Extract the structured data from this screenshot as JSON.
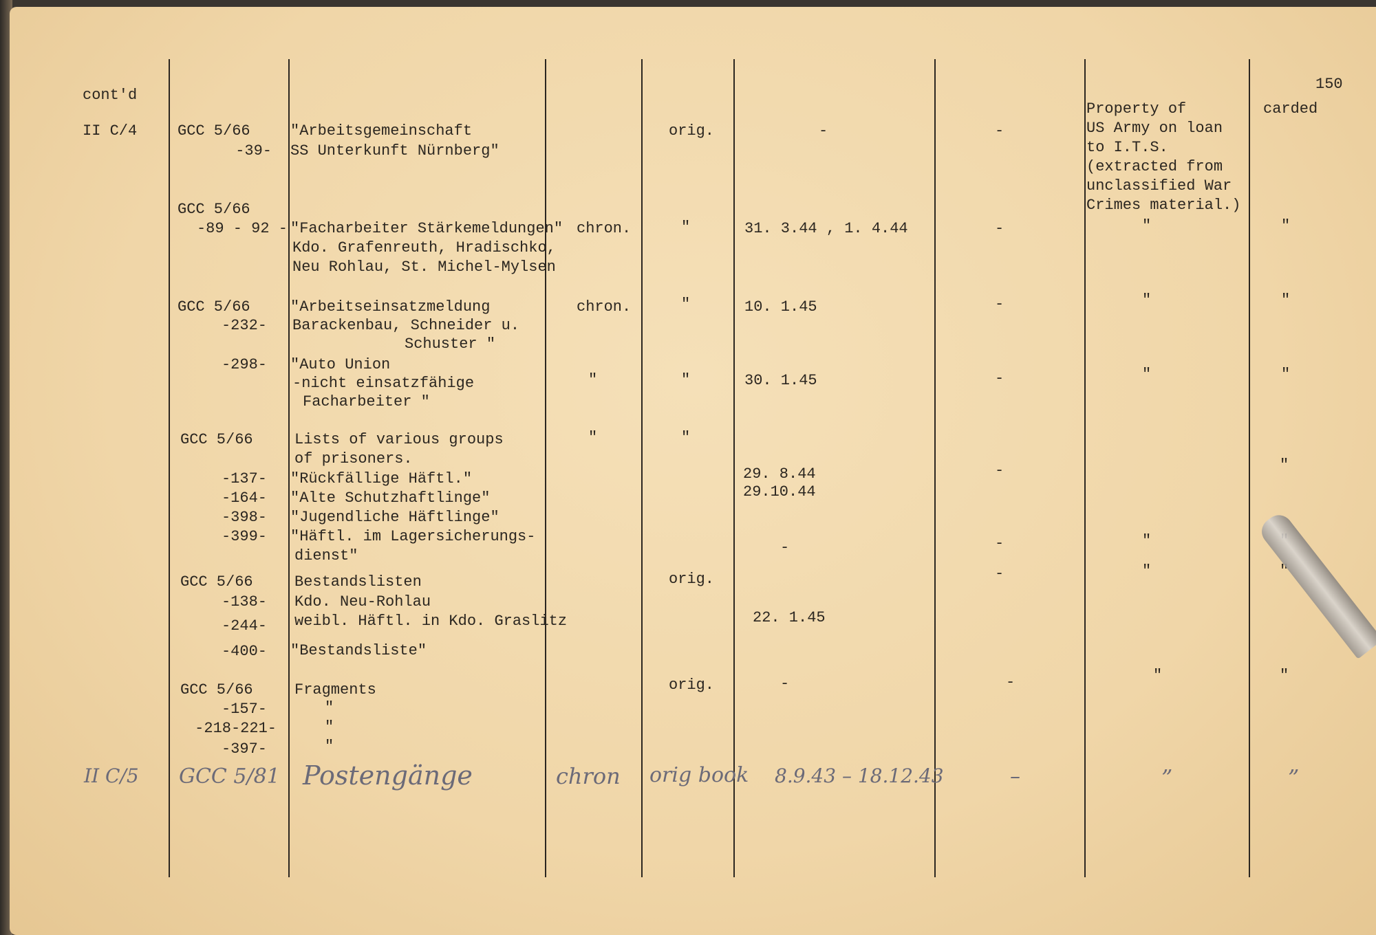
{
  "header": {
    "contd": "cont'd",
    "page_number": "150",
    "carded": "carded",
    "property_note": [
      "Property of",
      "US Army on loan",
      "to I.T.S.",
      "(extracted from",
      "unclassified War",
      "Crimes material.)"
    ]
  },
  "ditto": "\"",
  "dash": "-",
  "entries": [
    {
      "section": "II C/4",
      "ref": [
        "GCC 5/66",
        "-39-"
      ],
      "desc": [
        "\"Arbeitsgemeinschaft",
        "SS Unterkunft Nürnberg\""
      ],
      "orig": "orig."
    },
    {
      "ref": [
        "GCC 5/66",
        "-89 - 92 -"
      ],
      "desc": [
        "\"Facharbeiter Stärkemeldungen\"",
        "Kdo. Grafenreuth, Hradischko,",
        "Neu Rohlau, St. Michel-Mylsen"
      ],
      "type": "chron.",
      "date": "31. 3.44 , 1. 4.44"
    },
    {
      "ref": [
        "GCC 5/66",
        "-232-"
      ],
      "desc": [
        "\"Arbeitseinsatzmeldung",
        "Barackenbau, Schneider u.",
        "Schuster \""
      ],
      "type": "chron.",
      "date": "10. 1.45"
    },
    {
      "ref": [
        "-298-"
      ],
      "desc": [
        "\"Auto Union",
        "-nicht einsatzfähige",
        "Facharbeiter \""
      ],
      "date": "30. 1.45"
    },
    {
      "ref": [
        "GCC 5/66",
        "-137-",
        "-164-",
        "-398-",
        "-399-"
      ],
      "desc": [
        "Lists of various groups",
        "of prisoners.",
        "\"Rückfällige Häftl.\"",
        "\"Alte Schutzhaftlinge\"",
        "\"Jugendliche Häftlinge\"",
        "\"Häftl. im Lagersicherungs-",
        "dienst\""
      ],
      "dates": [
        "29. 8.44",
        "29.10.44"
      ]
    },
    {
      "ref": [
        "GCC 5/66",
        "-138-",
        "-244-",
        "-400-"
      ],
      "desc": [
        "Bestandslisten",
        "Kdo. Neu-Rohlau",
        "weibl. Häftl. in Kdo. Graslitz",
        "\"Bestandsliste\""
      ],
      "orig": "orig.",
      "date": "22. 1.45"
    },
    {
      "ref": [
        "GCC 5/66",
        "-157-",
        "-218-221-",
        "-397-"
      ],
      "desc": [
        "Fragments"
      ],
      "orig": "orig."
    }
  ],
  "handwritten": {
    "section": "II C/5",
    "ref": "GCC 5/81",
    "desc": "Postengänge",
    "type": "chron",
    "orig": "orig book",
    "date": "8.9.43 – 18.12.43",
    "col6": "–",
    "prop": "”",
    "carded": "”"
  }
}
